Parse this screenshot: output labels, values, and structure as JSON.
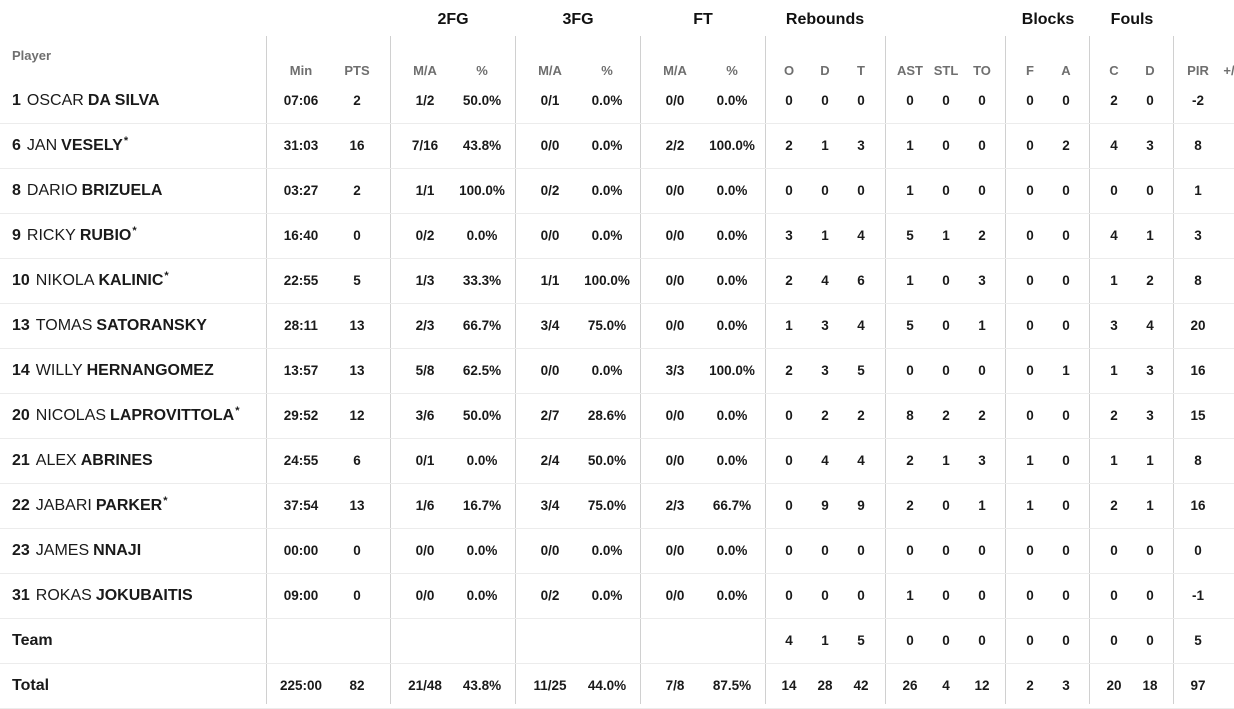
{
  "group_headers": {
    "twofg": "2FG",
    "threefg": "3FG",
    "ft": "FT",
    "rebounds": "Rebounds",
    "blocks": "Blocks",
    "fouls": "Fouls"
  },
  "player_header": "Player",
  "columns": {
    "min": "Min",
    "pts": "PTS",
    "fg2_ma": "M/A",
    "fg2_pct": "%",
    "fg3_ma": "M/A",
    "fg3_pct": "%",
    "ft_ma": "M/A",
    "ft_pct": "%",
    "reb_o": "O",
    "reb_d": "D",
    "reb_t": "T",
    "ast": "AST",
    "stl": "STL",
    "to": "TO",
    "blk_f": "F",
    "blk_a": "A",
    "foul_c": "C",
    "foul_d": "D",
    "pir": "PIR",
    "pm": "+/"
  },
  "players": [
    {
      "num": "1",
      "first": "OSCAR",
      "last": "DA SILVA",
      "star": "",
      "min": "07:06",
      "pts": "2",
      "fg2_ma": "1/2",
      "fg2_pct": "50.0%",
      "fg3_ma": "0/1",
      "fg3_pct": "0.0%",
      "ft_ma": "0/0",
      "ft_pct": "0.0%",
      "reb_o": "0",
      "reb_d": "0",
      "reb_t": "0",
      "ast": "0",
      "stl": "0",
      "to": "0",
      "blk_f": "0",
      "blk_a": "0",
      "foul_c": "2",
      "foul_d": "0",
      "pir": "-2"
    },
    {
      "num": "6",
      "first": "JAN",
      "last": "VESELY",
      "star": "*",
      "min": "31:03",
      "pts": "16",
      "fg2_ma": "7/16",
      "fg2_pct": "43.8%",
      "fg3_ma": "0/0",
      "fg3_pct": "0.0%",
      "ft_ma": "2/2",
      "ft_pct": "100.0%",
      "reb_o": "2",
      "reb_d": "1",
      "reb_t": "3",
      "ast": "1",
      "stl": "0",
      "to": "0",
      "blk_f": "0",
      "blk_a": "2",
      "foul_c": "4",
      "foul_d": "3",
      "pir": "8"
    },
    {
      "num": "8",
      "first": "DARIO",
      "last": "BRIZUELA",
      "star": "",
      "min": "03:27",
      "pts": "2",
      "fg2_ma": "1/1",
      "fg2_pct": "100.0%",
      "fg3_ma": "0/2",
      "fg3_pct": "0.0%",
      "ft_ma": "0/0",
      "ft_pct": "0.0%",
      "reb_o": "0",
      "reb_d": "0",
      "reb_t": "0",
      "ast": "1",
      "stl": "0",
      "to": "0",
      "blk_f": "0",
      "blk_a": "0",
      "foul_c": "0",
      "foul_d": "0",
      "pir": "1"
    },
    {
      "num": "9",
      "first": "RICKY",
      "last": "RUBIO",
      "star": "*",
      "min": "16:40",
      "pts": "0",
      "fg2_ma": "0/2",
      "fg2_pct": "0.0%",
      "fg3_ma": "0/0",
      "fg3_pct": "0.0%",
      "ft_ma": "0/0",
      "ft_pct": "0.0%",
      "reb_o": "3",
      "reb_d": "1",
      "reb_t": "4",
      "ast": "5",
      "stl": "1",
      "to": "2",
      "blk_f": "0",
      "blk_a": "0",
      "foul_c": "4",
      "foul_d": "1",
      "pir": "3"
    },
    {
      "num": "10",
      "first": "NIKOLA",
      "last": "KALINIC",
      "star": "*",
      "min": "22:55",
      "pts": "5",
      "fg2_ma": "1/3",
      "fg2_pct": "33.3%",
      "fg3_ma": "1/1",
      "fg3_pct": "100.0%",
      "ft_ma": "0/0",
      "ft_pct": "0.0%",
      "reb_o": "2",
      "reb_d": "4",
      "reb_t": "6",
      "ast": "1",
      "stl": "0",
      "to": "3",
      "blk_f": "0",
      "blk_a": "0",
      "foul_c": "1",
      "foul_d": "2",
      "pir": "8"
    },
    {
      "num": "13",
      "first": "TOMAS",
      "last": "SATORANSKY",
      "star": "",
      "min": "28:11",
      "pts": "13",
      "fg2_ma": "2/3",
      "fg2_pct": "66.7%",
      "fg3_ma": "3/4",
      "fg3_pct": "75.0%",
      "ft_ma": "0/0",
      "ft_pct": "0.0%",
      "reb_o": "1",
      "reb_d": "3",
      "reb_t": "4",
      "ast": "5",
      "stl": "0",
      "to": "1",
      "blk_f": "0",
      "blk_a": "0",
      "foul_c": "3",
      "foul_d": "4",
      "pir": "20"
    },
    {
      "num": "14",
      "first": "WILLY",
      "last": "HERNANGOMEZ",
      "star": "",
      "min": "13:57",
      "pts": "13",
      "fg2_ma": "5/8",
      "fg2_pct": "62.5%",
      "fg3_ma": "0/0",
      "fg3_pct": "0.0%",
      "ft_ma": "3/3",
      "ft_pct": "100.0%",
      "reb_o": "2",
      "reb_d": "3",
      "reb_t": "5",
      "ast": "0",
      "stl": "0",
      "to": "0",
      "blk_f": "0",
      "blk_a": "1",
      "foul_c": "1",
      "foul_d": "3",
      "pir": "16"
    },
    {
      "num": "20",
      "first": "NICOLAS",
      "last": "LAPROVITTOLA",
      "star": "*",
      "min": "29:52",
      "pts": "12",
      "fg2_ma": "3/6",
      "fg2_pct": "50.0%",
      "fg3_ma": "2/7",
      "fg3_pct": "28.6%",
      "ft_ma": "0/0",
      "ft_pct": "0.0%",
      "reb_o": "0",
      "reb_d": "2",
      "reb_t": "2",
      "ast": "8",
      "stl": "2",
      "to": "2",
      "blk_f": "0",
      "blk_a": "0",
      "foul_c": "2",
      "foul_d": "3",
      "pir": "15"
    },
    {
      "num": "21",
      "first": "ALEX",
      "last": "ABRINES",
      "star": "",
      "min": "24:55",
      "pts": "6",
      "fg2_ma": "0/1",
      "fg2_pct": "0.0%",
      "fg3_ma": "2/4",
      "fg3_pct": "50.0%",
      "ft_ma": "0/0",
      "ft_pct": "0.0%",
      "reb_o": "0",
      "reb_d": "4",
      "reb_t": "4",
      "ast": "2",
      "stl": "1",
      "to": "3",
      "blk_f": "1",
      "blk_a": "0",
      "foul_c": "1",
      "foul_d": "1",
      "pir": "8"
    },
    {
      "num": "22",
      "first": "JABARI",
      "last": "PARKER",
      "star": "*",
      "min": "37:54",
      "pts": "13",
      "fg2_ma": "1/6",
      "fg2_pct": "16.7%",
      "fg3_ma": "3/4",
      "fg3_pct": "75.0%",
      "ft_ma": "2/3",
      "ft_pct": "66.7%",
      "reb_o": "0",
      "reb_d": "9",
      "reb_t": "9",
      "ast": "2",
      "stl": "0",
      "to": "1",
      "blk_f": "1",
      "blk_a": "0",
      "foul_c": "2",
      "foul_d": "1",
      "pir": "16"
    },
    {
      "num": "23",
      "first": "JAMES",
      "last": "NNAJI",
      "star": "",
      "min": "00:00",
      "pts": "0",
      "fg2_ma": "0/0",
      "fg2_pct": "0.0%",
      "fg3_ma": "0/0",
      "fg3_pct": "0.0%",
      "ft_ma": "0/0",
      "ft_pct": "0.0%",
      "reb_o": "0",
      "reb_d": "0",
      "reb_t": "0",
      "ast": "0",
      "stl": "0",
      "to": "0",
      "blk_f": "0",
      "blk_a": "0",
      "foul_c": "0",
      "foul_d": "0",
      "pir": "0"
    },
    {
      "num": "31",
      "first": "ROKAS",
      "last": "JOKUBAITIS",
      "star": "",
      "min": "09:00",
      "pts": "0",
      "fg2_ma": "0/0",
      "fg2_pct": "0.0%",
      "fg3_ma": "0/2",
      "fg3_pct": "0.0%",
      "ft_ma": "0/0",
      "ft_pct": "0.0%",
      "reb_o": "0",
      "reb_d": "0",
      "reb_t": "0",
      "ast": "1",
      "stl": "0",
      "to": "0",
      "blk_f": "0",
      "blk_a": "0",
      "foul_c": "0",
      "foul_d": "0",
      "pir": "-1"
    }
  ],
  "team_row": {
    "label": "Team",
    "min": "",
    "pts": "",
    "fg2_ma": "",
    "fg2_pct": "",
    "fg3_ma": "",
    "fg3_pct": "",
    "ft_ma": "",
    "ft_pct": "",
    "reb_o": "4",
    "reb_d": "1",
    "reb_t": "5",
    "ast": "0",
    "stl": "0",
    "to": "0",
    "blk_f": "0",
    "blk_a": "0",
    "foul_c": "0",
    "foul_d": "0",
    "pir": "5"
  },
  "total_row": {
    "label": "Total",
    "min": "225:00",
    "pts": "82",
    "fg2_ma": "21/48",
    "fg2_pct": "43.8%",
    "fg3_ma": "11/25",
    "fg3_pct": "44.0%",
    "ft_ma": "7/8",
    "ft_pct": "87.5%",
    "reb_o": "14",
    "reb_d": "28",
    "reb_t": "42",
    "ast": "26",
    "stl": "4",
    "to": "12",
    "blk_f": "2",
    "blk_a": "3",
    "foul_c": "20",
    "foul_d": "18",
    "pir": "97"
  }
}
